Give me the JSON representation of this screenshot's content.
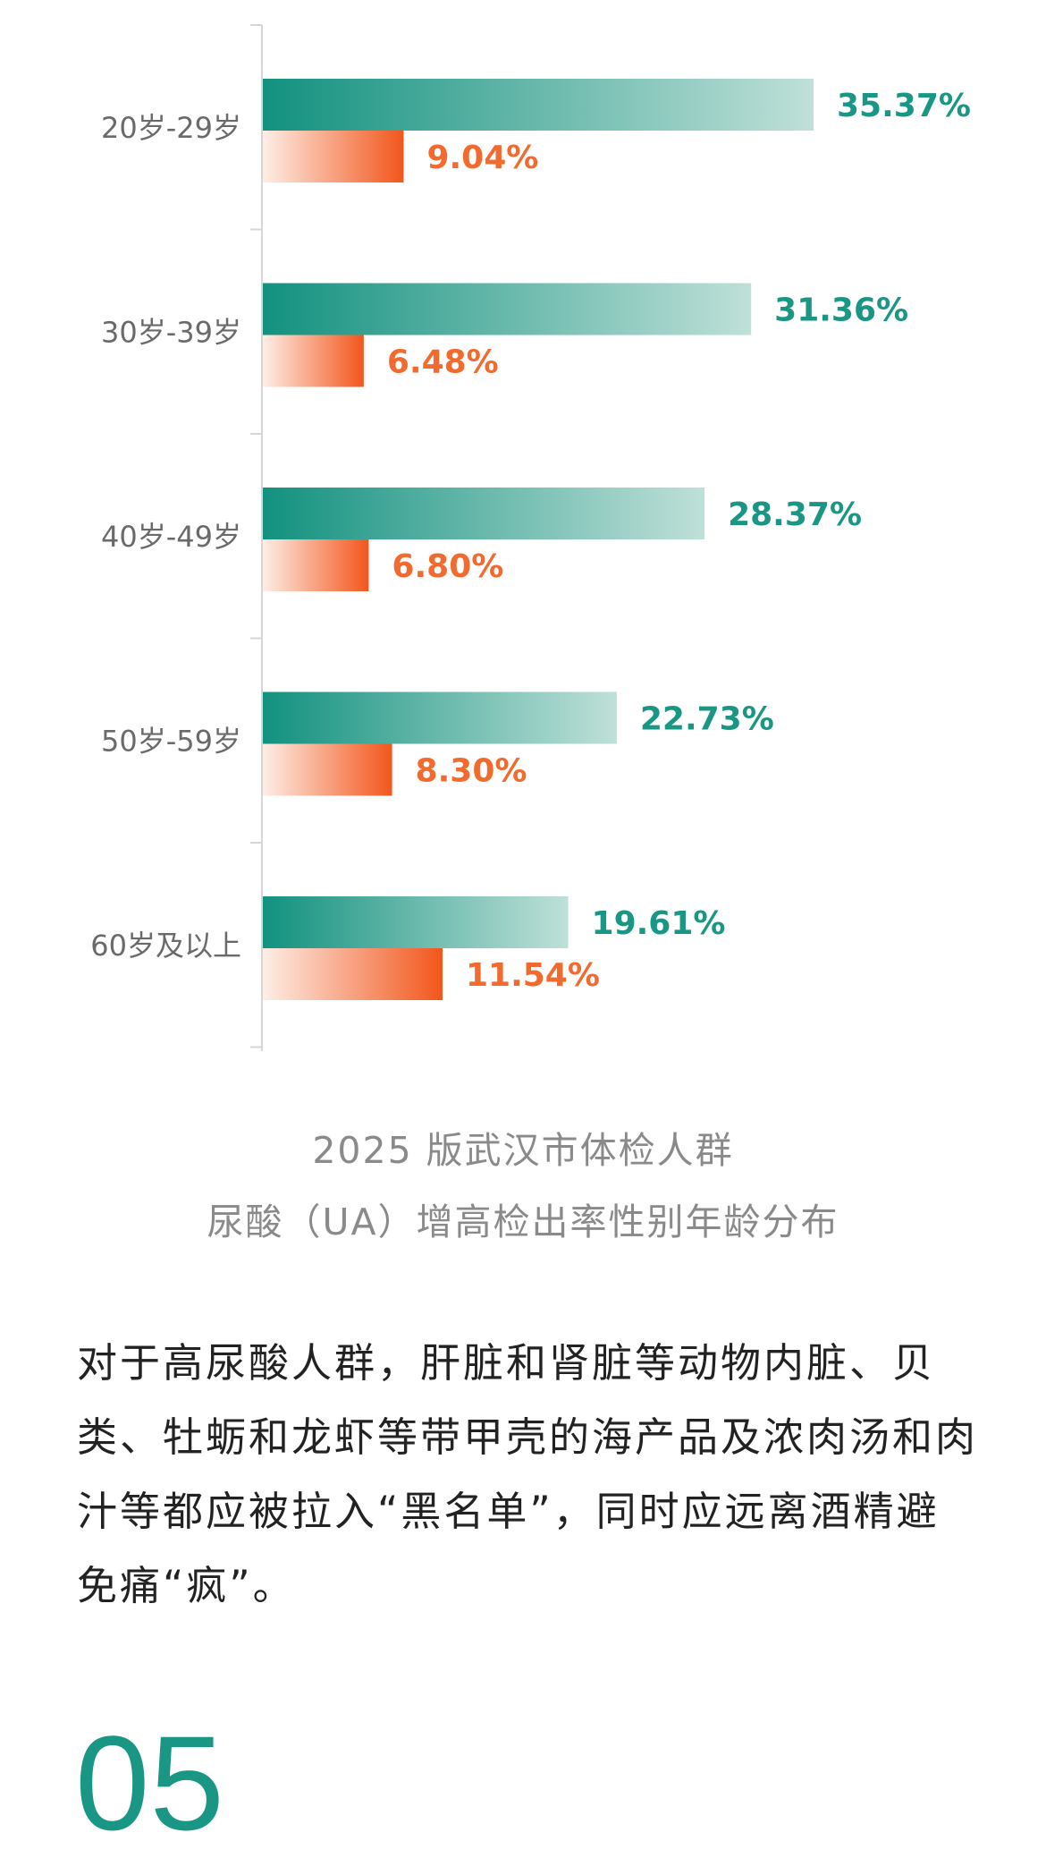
{
  "chart_data": {
    "type": "bar",
    "orientation": "horizontal",
    "categories": [
      "20岁-29岁",
      "30岁-39岁",
      "40岁-49岁",
      "50岁-59岁",
      "60岁及以上"
    ],
    "series": [
      {
        "values": [
          35.37,
          31.36,
          28.37,
          22.73,
          19.61
        ],
        "labels": [
          "35.37%",
          "31.36%",
          "28.37%",
          "22.73%",
          "19.61%"
        ],
        "color": "#1a9684"
      },
      {
        "values": [
          9.04,
          6.48,
          6.8,
          8.3,
          11.54
        ],
        "labels": [
          "9.04%",
          "6.48%",
          "6.80%",
          "8.30%",
          "11.54%"
        ],
        "color": "#f26a2e"
      }
    ],
    "xlim": [
      0,
      45
    ],
    "grid": false
  },
  "caption": {
    "line1": "2025 版武汉市体检人群",
    "line2": "尿酸（UA）增高检出率性别年龄分布"
  },
  "paragraph": "对于高尿酸人群，肝脏和肾脏等动物内脏、贝类、牡蛎和龙虾等带甲壳的海产品及浓肉汤和肉汁等都应被拉入“黑名单”，同时应远离酒精避免痛“疯”。",
  "section_number": "05"
}
